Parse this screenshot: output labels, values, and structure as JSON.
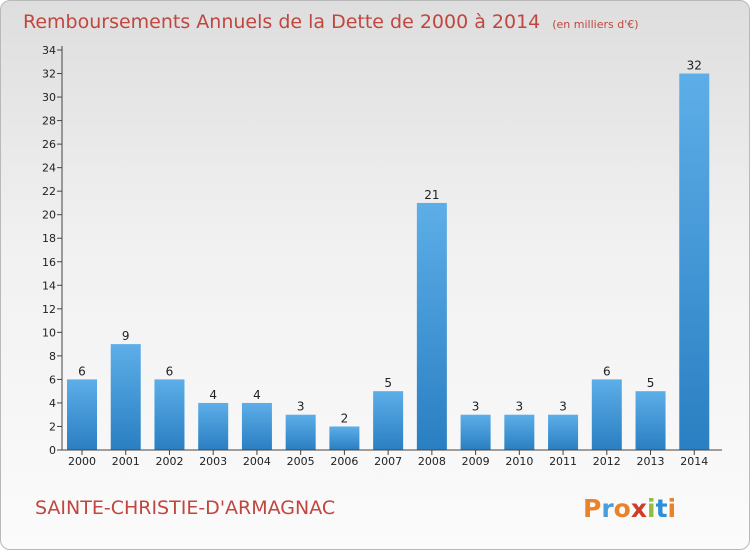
{
  "chart_data": {
    "type": "bar",
    "title": "Remboursements Annuels de la Dette de 2000 à 2014",
    "subtitle": "(en milliers d'€)",
    "xlabel": "",
    "ylabel": "",
    "categories": [
      "2000",
      "2001",
      "2002",
      "2003",
      "2004",
      "2005",
      "2006",
      "2007",
      "2008",
      "2009",
      "2010",
      "2011",
      "2012",
      "2013",
      "2014"
    ],
    "values": [
      6,
      9,
      6,
      4,
      4,
      3,
      2,
      5,
      21,
      3,
      3,
      3,
      6,
      5,
      32
    ],
    "ylim": [
      0,
      34
    ],
    "yticks": [
      0,
      2,
      4,
      6,
      8,
      10,
      12,
      14,
      16,
      18,
      20,
      22,
      24,
      26,
      28,
      30,
      32,
      34
    ],
    "grid": false,
    "bar_color": "#4a9ddc"
  },
  "footer": {
    "commune": "SAINTE-CHRISTIE-D'ARMAGNAC",
    "logo_text": "Proxiti",
    "logo_colors": [
      "#e8832a",
      "#4a9ddc",
      "#e8832a",
      "#d23a2a",
      "#8fbf3c",
      "#2f8fd6",
      "#e8832a"
    ]
  }
}
